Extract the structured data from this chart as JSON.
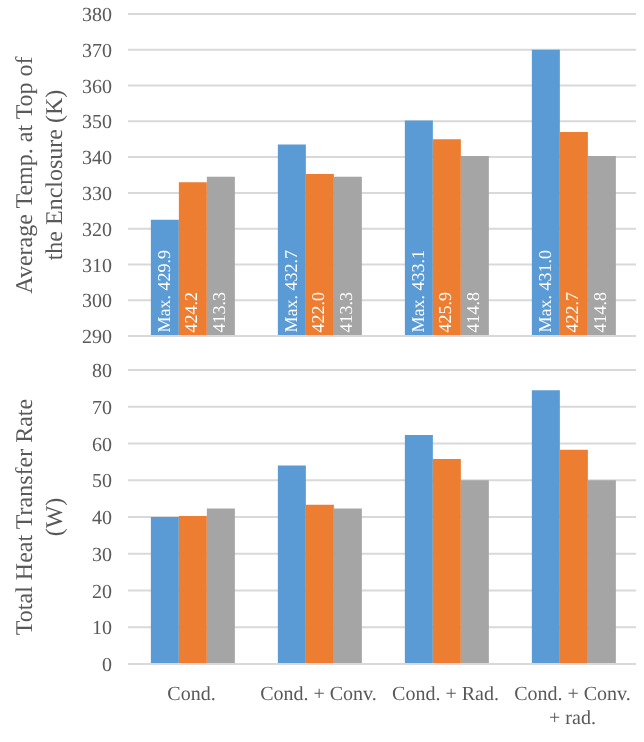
{
  "chart_data": [
    {
      "type": "bar",
      "ylabel": "Average Temp. at Top of the Enclosure (K)",
      "categories": [
        "Cond.",
        "Cond. + Conv.",
        "Cond. + Rad.",
        "Cond. + Conv. + rad."
      ],
      "series": [
        {
          "color": "#5b9bd5",
          "values": [
            322.5,
            343.5,
            350.2,
            370
          ]
        },
        {
          "color": "#ed7d31",
          "values": [
            333,
            335.3,
            345,
            347
          ]
        },
        {
          "color": "#a5a5a5",
          "values": [
            334.5,
            334.5,
            340.3,
            340.3
          ]
        }
      ],
      "annotations": [
        {
          "text": "Max. 429.9",
          "x": "Cond.",
          "y": 291
        },
        {
          "text": "424.2",
          "x": "Cond.",
          "y": 291
        },
        {
          "text": "413.3",
          "x": "Cond.",
          "y": 291
        },
        {
          "text": "Max. 432.7",
          "x": "Cond. + Conv.",
          "y": 291
        },
        {
          "text": "422.0",
          "x": "Cond. + Conv.",
          "y": 291
        },
        {
          "text": "413.3",
          "x": "Cond. + Conv.",
          "y": 291
        },
        {
          "text": "Max. 433.1",
          "x": "Cond. + Rad.",
          "y": 291
        },
        {
          "text": "425.9",
          "x": "Cond. + Rad.",
          "y": 291
        },
        {
          "text": "414.8",
          "x": "Cond. + Rad.",
          "y": 291
        },
        {
          "text": "Max. 431.0",
          "x": "Cond. + Conv. + rad.",
          "y": 291
        },
        {
          "text": "422.7",
          "x": "Cond. + Conv. + rad.",
          "y": 291
        },
        {
          "text": "414.8",
          "x": "Cond. + Conv. + rad.",
          "y": 291
        }
      ],
      "ylim": [
        290,
        380
      ],
      "yticks": [
        290,
        300,
        310,
        320,
        330,
        340,
        350,
        360,
        370,
        380
      ],
      "grid": "y",
      "legend": false,
      "tick_labels": "y"
    },
    {
      "type": "bar",
      "ylabel": "Total Heat Transfer Rate (W)",
      "categories": [
        "Cond.",
        "Cond. + Conv.",
        "Cond. + Rad.",
        "Cond. + Conv. + rad."
      ],
      "series": [
        {
          "color": "#5b9bd5",
          "values": [
            40,
            54,
            62.3,
            74.5
          ]
        },
        {
          "color": "#ed7d31",
          "values": [
            40.3,
            43.3,
            55.8,
            58.3
          ]
        },
        {
          "color": "#a5a5a5",
          "values": [
            42.3,
            42.3,
            50,
            50
          ]
        }
      ],
      "ylim": [
        0,
        80
      ],
      "yticks": [
        0,
        10,
        20,
        30,
        40,
        50,
        60,
        70,
        80
      ],
      "grid": "y",
      "legend": false
    }
  ]
}
